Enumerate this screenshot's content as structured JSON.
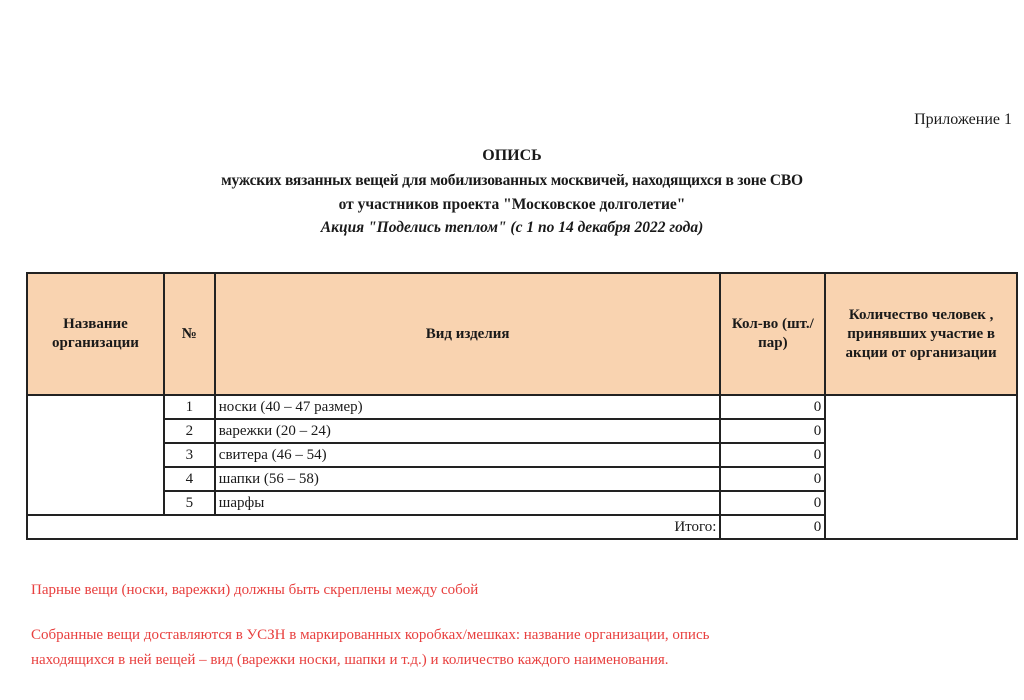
{
  "appendix": "Приложение 1",
  "title": "ОПИСЬ",
  "subtitle_1": "мужских вязанных вещей для мобилизованных москвичей, находящихся в зоне СВО",
  "subtitle_2": "от участников проекта \"Московское долголетие\"",
  "subtitle_3": "Акция \"Поделись теплом\" (с 1 по 14 декабря 2022 года)",
  "table": {
    "header_color": "#f9d3b0",
    "headers": {
      "org": "Название организации",
      "num": "№",
      "item": "Вид изделия",
      "qty": "Кол-во (шт./пар)",
      "people": "Количество человек , принявших участие в акции от организации"
    },
    "rows": [
      {
        "num": "1",
        "item": "носки (40 – 47 размер)",
        "qty": "0"
      },
      {
        "num": "2",
        "item": "варежки (20 – 24)",
        "qty": "0"
      },
      {
        "num": "3",
        "item": "свитера (46 – 54)",
        "qty": "0"
      },
      {
        "num": "4",
        "item": "шапки (56 – 58)",
        "qty": "0"
      },
      {
        "num": "5",
        "item": "шарфы",
        "qty": "0"
      }
    ],
    "total_label": "Итого:",
    "total_value": "0"
  },
  "notes": {
    "color": "#e8403f",
    "note_1": "Парные вещи (носки, варежки) должны быть скреплены между собой",
    "note_2_line_1": "Собранные вещи доставляются в УСЗН в маркированных коробках/мешках: название организации, опись",
    "note_2_line_2": "находящихся в ней вещей – вид (варежки носки, шапки и т.д.) и количество каждого наименования."
  }
}
